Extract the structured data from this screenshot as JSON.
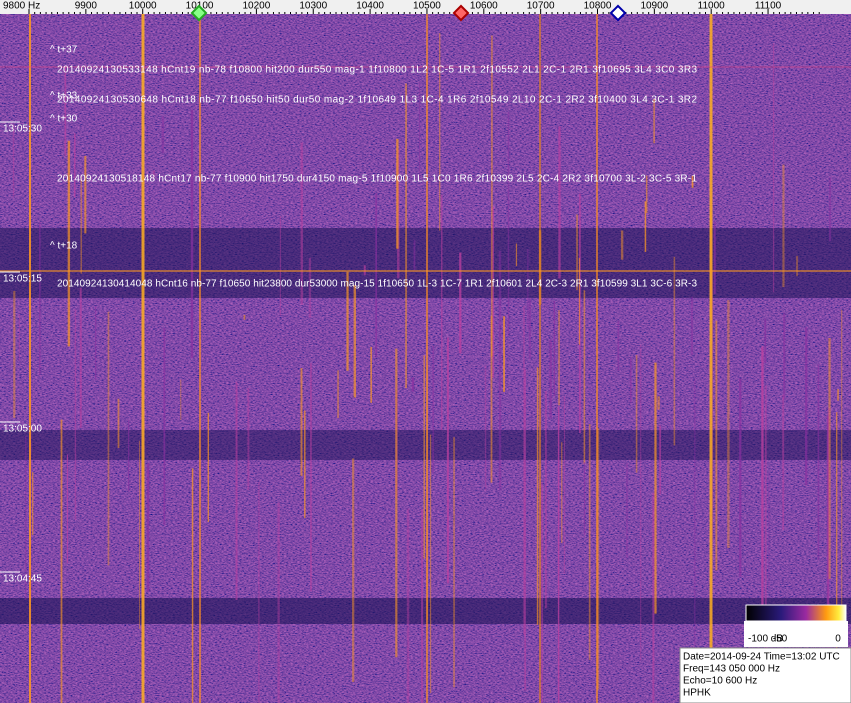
{
  "axis": {
    "frequency_labels": [
      "9800 Hz",
      "9900",
      "10000",
      "10100",
      "10200",
      "10300",
      "10400",
      "10500",
      "10600",
      "10700",
      "10800",
      "10900",
      "11000",
      "11100"
    ],
    "time_labels": [
      "13:05:30",
      "13:05:15",
      "13:05:00",
      "13:04:45"
    ]
  },
  "overlays": [
    {
      "text": "^ t+37"
    },
    {
      "text": "20140924130533148 hCnt19 nb-78 f10800 hit200 dur550 mag-1 1f10800 1L2 1C-5 1R1 2f10552 2L1 2C-1 2R1 3f10695 3L4 3C0 3R3"
    },
    {
      "text": "^ t+33"
    },
    {
      "text": "20140924130530648 hCnt18 nb-77 f10650 hit50 dur50 mag-2 1f10649 1L3 1C-4 1R6 2f10549 2L10 2C-1 2R2 3f10400 3L4 3C-1 3R2"
    },
    {
      "text": "^ t+30"
    },
    {
      "text": "20140924130518148 hCnt17 nb-77 f10900 hit1750 dur4150 mag-5 1f10900 1L5 1C0 1R6 2f10399 2L5 2C-4 2R2 3f10700 3L-2 3C-5 3R-1"
    },
    {
      "text": "^ t+18"
    },
    {
      "text": "20140924130414048 hCnt16 nb-77 f10650 hit23800 dur53000 mag-15 1f10650 1L-3 1C-7 1R1 2f10601 2L4 2C-3 2R1 3f10599 3L1 3C-6 3R-3"
    }
  ],
  "color_scale": {
    "labels": [
      "-100 dB",
      "-50",
      "0"
    ]
  },
  "info": {
    "lines": [
      "Date=2014-09-24 Time=13:02 UTC",
      "Freq=143 050 000 Hz",
      "Echo=10 600 Hz",
      "HPHK"
    ]
  }
}
